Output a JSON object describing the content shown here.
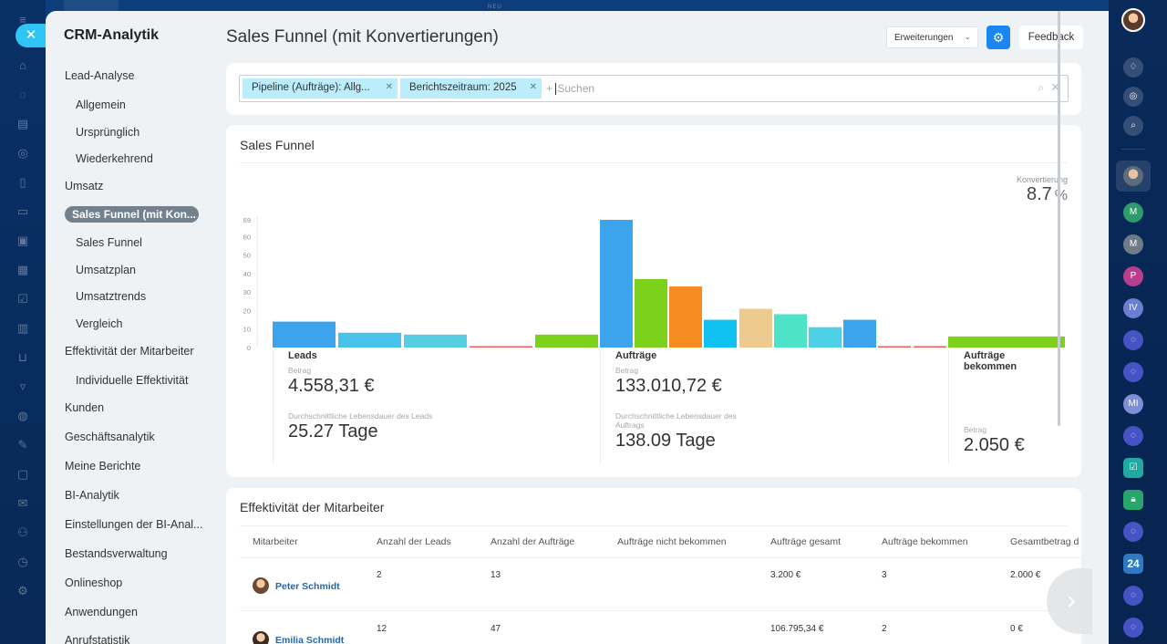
{
  "colors": {
    "accent": "#1a86f0",
    "active_nav": "#73808d",
    "chip": "#bcedfc",
    "link": "#2067b0"
  },
  "top_badge": "NEU",
  "sidebar": {
    "title": "CRM-Analytik",
    "items": [
      {
        "label": "Lead-Analyse",
        "level": "top"
      },
      {
        "label": "Allgemein",
        "level": "sub"
      },
      {
        "label": "Ursprünglich",
        "level": "sub"
      },
      {
        "label": "Wiederkehrend",
        "level": "sub"
      },
      {
        "label": "Umsatz",
        "level": "top"
      },
      {
        "label": "Sales Funnel (mit Kon...",
        "level": "active"
      },
      {
        "label": "Sales Funnel",
        "level": "sub"
      },
      {
        "label": "Umsatzplan",
        "level": "sub"
      },
      {
        "label": "Umsatztrends",
        "level": "sub"
      },
      {
        "label": "Vergleich",
        "level": "sub"
      },
      {
        "label": "Effektivität der Mitarbeiter",
        "level": "top"
      },
      {
        "label": "Individuelle Effektivität",
        "level": "sub"
      },
      {
        "label": "Kunden",
        "level": "top"
      },
      {
        "label": "Geschäftsanalytik",
        "level": "top"
      },
      {
        "label": "Meine Berichte",
        "level": "top"
      },
      {
        "label": "BI-Analytik",
        "level": "top"
      },
      {
        "label": "Einstellungen der BI-Anal...",
        "level": "top"
      },
      {
        "label": "Bestandsverwaltung",
        "level": "top"
      },
      {
        "label": "Onlineshop",
        "level": "top"
      },
      {
        "label": "Anwendungen",
        "level": "top"
      },
      {
        "label": "Anrufstatistik",
        "level": "top"
      }
    ]
  },
  "header": {
    "title": "Sales Funnel (mit Konvertierungen)",
    "extensions_label": "Erweiterungen",
    "feedback_label": "Feedback"
  },
  "filter": {
    "chips": [
      "Pipeline (Aufträge): Allg...",
      "Berichtszeitraum: 2025"
    ],
    "placeholder": "Suchen"
  },
  "funnel": {
    "title": "Sales Funnel",
    "conversion_label": "Konvertierung",
    "conversion_value": "8.7",
    "conversion_unit": "%",
    "stats": [
      {
        "heading": "Leads",
        "amount_label": "Betrag",
        "amount": "4.558,31 €",
        "life_label": "Durchschnittliche Lebensdauer des Leads",
        "life_value": "25.27 Tage"
      },
      {
        "heading": "Aufträge",
        "amount_label": "Betrag",
        "amount": "133.010,72 €",
        "life_label": "Durchschnittliche Lebensdauer des Auftrags",
        "life_value": "138.09 Tage"
      },
      {
        "heading": "Aufträge bekommen",
        "amount_label": "Betrag",
        "amount": "2.050 €"
      }
    ]
  },
  "chart_data": {
    "type": "bar",
    "y_ticks": [
      "69",
      "60",
      "50",
      "40",
      "30",
      "20",
      "10",
      "0"
    ],
    "ylim": [
      0,
      69
    ],
    "values": [
      14,
      8,
      7,
      0.5,
      7,
      69,
      37,
      33,
      15,
      21,
      18,
      11,
      15,
      0.5,
      0.5,
      6
    ],
    "colors": [
      "#3ba4ec",
      "#47c2e8",
      "#55cfe0",
      "#ef5a5a",
      "#7bd11b",
      "#3ba4ec",
      "#7bd11b",
      "#f68c1f",
      "#10c2f0",
      "#edcb90",
      "#4de3c8",
      "#4fd0e6",
      "#3ba4ec",
      "#ef5a5a",
      "#ef5a5a",
      "#7bd11b"
    ]
  },
  "employees": {
    "title": "Effektivität der Mitarbeiter",
    "columns": [
      "Mitarbeiter",
      "Anzahl der Leads",
      "Anzahl der Aufträge",
      "Aufträge nicht bekommen",
      "Aufträge gesamt",
      "Aufträge bekommen",
      "Gesamtbetrag d"
    ],
    "rows": [
      {
        "name": "Peter Schmidt",
        "leads": "2",
        "deals": "13",
        "lost": "",
        "total": "3.200 €",
        "won": "3",
        "sum": "2.000 €"
      },
      {
        "name": "Emilia Schmidt",
        "leads": "12",
        "deals": "47",
        "lost": "",
        "total": "106.795,34 €",
        "won": "2",
        "sum": "0 €"
      }
    ]
  },
  "right_rail": {
    "initials": [
      "M",
      "M",
      "P",
      "IV",
      "MI"
    ],
    "badge_24": "24"
  }
}
